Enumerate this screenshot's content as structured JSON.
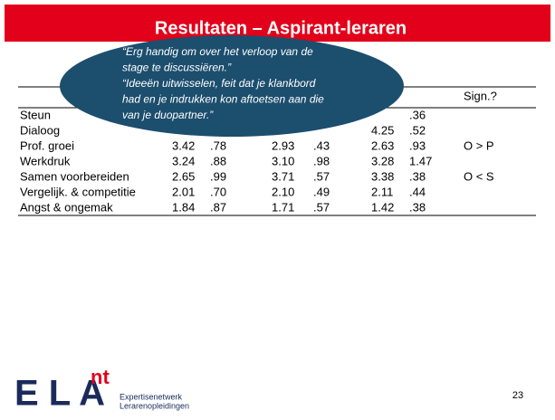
{
  "header": {
    "title": "Resultaten – Aspirant-leraren"
  },
  "callout": {
    "lines": [
      "“Erg handig om over het verloop van de",
      "stage te discussiëren.”",
      "“Ideeën uitwisselen, feit dat je klankbord",
      "had en je indrukken kon aftoetsen aan die",
      "van je duopartner.”"
    ]
  },
  "table": {
    "sign_header": "Sign.?",
    "rows": [
      {
        "label": "Steun",
        "cells": [
          ".36"
        ]
      },
      {
        "label": "Dialoog",
        "cells": [
          "4.25",
          ".52"
        ]
      },
      {
        "label": "Prof. groei",
        "cells": [
          "3.42",
          ".78",
          "2.93",
          ".43",
          "2.63",
          ".93"
        ],
        "sign": "O > P"
      },
      {
        "label": "Werkdruk",
        "cells": [
          "3.24",
          ".88",
          "3.10",
          ".98",
          "3.28",
          "1.47"
        ]
      },
      {
        "label": "Samen voorbereiden",
        "cells": [
          "2.65",
          ".99",
          "3.71",
          ".57",
          "3.38",
          ".38"
        ],
        "sign": "O < S"
      },
      {
        "label": "Vergelijk. & competitie",
        "cells": [
          "2.01",
          ".70",
          "2.10",
          ".49",
          "2.11",
          ".44"
        ]
      },
      {
        "label": "Angst & ongemak",
        "cells": [
          "1.84",
          ".87",
          "1.71",
          ".57",
          "1.42",
          ".38"
        ]
      }
    ]
  },
  "footer": {
    "logo_letters": "E L A",
    "logo_sup": "nt",
    "logo_line1": "Expertisenetwerk",
    "logo_line2": "Lerarenopleidingen",
    "page": "23"
  }
}
